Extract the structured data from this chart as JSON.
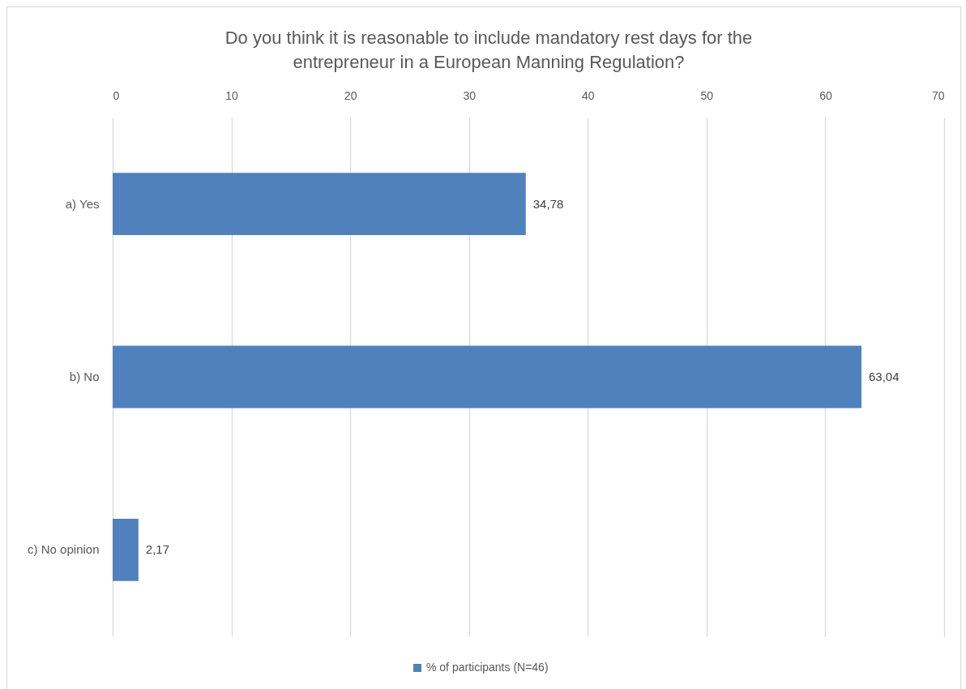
{
  "chart_data": {
    "type": "bar",
    "orientation": "horizontal",
    "title": "Do you think it is reasonable to include mandatory rest days for the entrepreneur in a European Manning Regulation?",
    "categories": [
      "a) Yes",
      "b) No",
      "c) No opinion"
    ],
    "series": [
      {
        "name": "% of participants (N=46)",
        "color": "#4f81bd",
        "values": [
          34.78,
          63.04,
          2.17
        ],
        "value_labels": [
          "34,78",
          "63,04",
          "2,17"
        ]
      }
    ],
    "xlim": [
      0,
      70
    ],
    "xticks": [
      0,
      10,
      20,
      30,
      40,
      50,
      60,
      70
    ],
    "grid": "x",
    "legend": "bottom"
  }
}
